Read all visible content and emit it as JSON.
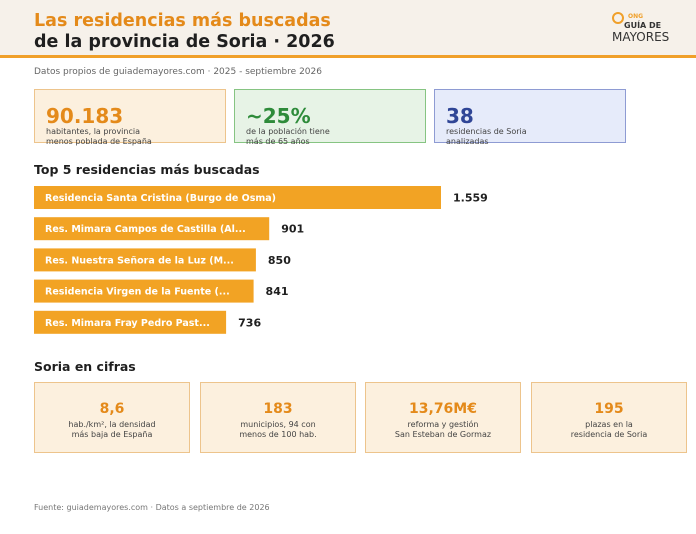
{
  "header": {
    "title_line1": "Las residencias más buscadas",
    "title_line2": "de la provincia de Soria · 2026",
    "logo": {
      "ong": "ONG",
      "guia": "GUÍA DE",
      "mayores": "MAYORES"
    }
  },
  "subtitle": "Datos propios de guiademayores.com · 2025 - septiembre 2026",
  "kpis": [
    {
      "value": "90.183",
      "desc_line1": "habitantes, la provincia",
      "desc_line2": "menos poblada de España"
    },
    {
      "value": "~25%",
      "desc_line1": "de la población tiene",
      "desc_line2": "más de 65 años"
    },
    {
      "value": "38",
      "desc_line1": "residencias de Soria",
      "desc_line2": "analizadas"
    }
  ],
  "top5_title": "Top 5 residencias más buscadas",
  "chart_data": {
    "type": "bar",
    "orientation": "horizontal",
    "categories": [
      "Residencia Santa Cristina (Burgo de Osma)",
      "Res. Mimara Campos de Castilla (Al...",
      "Res. Nuestra Señora de la Luz (M...",
      "Residencia Virgen de la Fuente (...",
      "Res. Mimara Fray Pedro Past..."
    ],
    "values": [
      1559,
      901,
      850,
      841,
      736
    ],
    "value_labels": [
      "1.559",
      "901",
      "850",
      "841",
      "736"
    ],
    "title": "Top 5 residencias más buscadas",
    "bar_color": "#f2a324",
    "label_color": "#ffffff"
  },
  "cifras_title": "Soria en cifras",
  "cifras": [
    {
      "value": "8,6",
      "desc_line1": "hab./km², la densidad",
      "desc_line2": "más baja de España"
    },
    {
      "value": "183",
      "desc_line1": "municipios, 94 con",
      "desc_line2": "menos de 100 hab."
    },
    {
      "value": "13,76M€",
      "desc_line1": "reforma y gestión",
      "desc_line2": "San Esteban de Gormaz"
    },
    {
      "value": "195",
      "desc_line1": "plazas en la",
      "desc_line2": "residencia de Soria"
    }
  ],
  "footer": "Fuente: guiademayores.com · Datos a septiembre de 2026",
  "colors": {
    "accent": "#f0a02a",
    "title_orange": "#e48a1a",
    "green": "#2e8b3a",
    "blue": "#2f4596"
  }
}
